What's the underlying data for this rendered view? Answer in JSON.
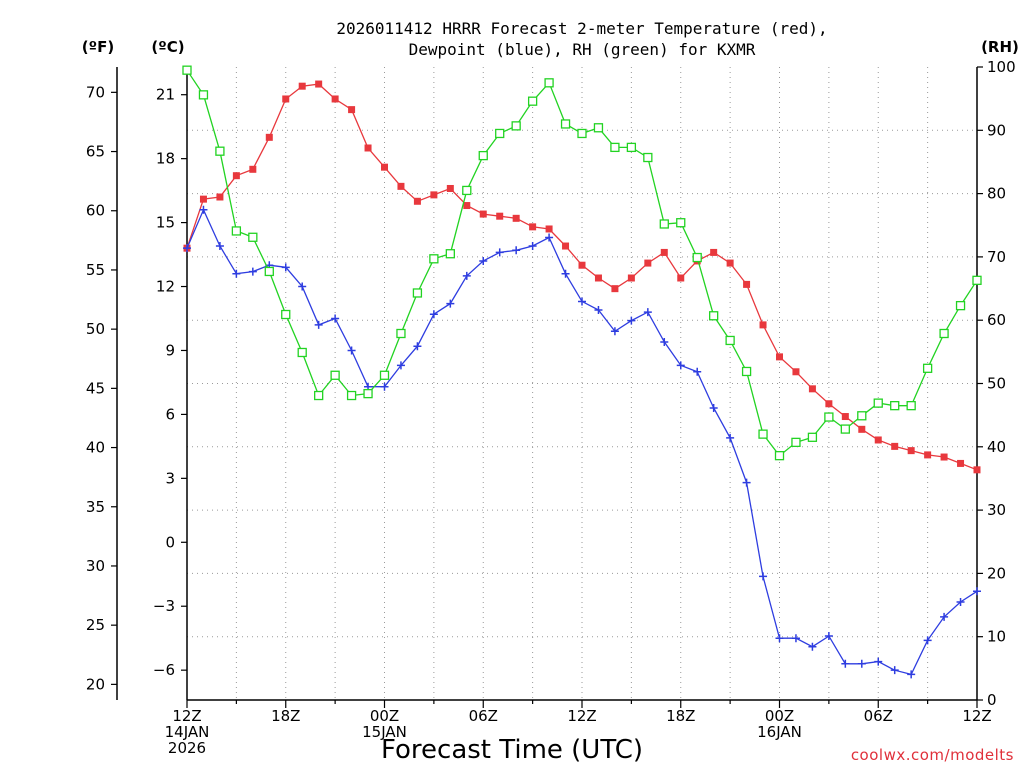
{
  "chart_data": {
    "type": "line",
    "title": [
      "2026011412 HRRR Forecast 2-meter Temperature (red),",
      "Dewpoint (blue), RH (green) for KXMR"
    ],
    "xlabel": "Forecast Time (UTC)",
    "credit": "coolwx.com/modelts",
    "units": {
      "fahrenheit": "(ºF)",
      "celsius": "(ºC)",
      "rh": "(RH)"
    },
    "hours_range": [
      0,
      48
    ],
    "celsius_range": [
      -7.4,
      22.3
    ],
    "rh_range": [
      0,
      100
    ],
    "x_ticks": [
      {
        "hour": 0,
        "lines": [
          "12Z",
          "14JAN",
          "2026"
        ]
      },
      {
        "hour": 6,
        "lines": [
          "18Z"
        ]
      },
      {
        "hour": 12,
        "lines": [
          "00Z",
          "15JAN"
        ]
      },
      {
        "hour": 18,
        "lines": [
          "06Z"
        ]
      },
      {
        "hour": 24,
        "lines": [
          "12Z"
        ]
      },
      {
        "hour": 30,
        "lines": [
          "18Z"
        ]
      },
      {
        "hour": 36,
        "lines": [
          "00Z",
          "16JAN"
        ]
      },
      {
        "hour": 42,
        "lines": [
          "06Z"
        ]
      },
      {
        "hour": 48,
        "lines": [
          "12Z"
        ]
      }
    ],
    "celsius_ticks": [
      "-6",
      "-3",
      "0",
      "3",
      "6",
      "9",
      "12",
      "15",
      "18",
      "21"
    ],
    "fahrenheit_ticks": [
      "20",
      "25",
      "30",
      "35",
      "40",
      "45",
      "50",
      "55",
      "60",
      "65",
      "70"
    ],
    "rh_ticks": [
      "0",
      "10",
      "20",
      "30",
      "40",
      "50",
      "60",
      "70",
      "80",
      "90",
      "100"
    ],
    "series": [
      {
        "name": "2-meter Temperature (°C)",
        "axis": "celsius",
        "color": "#e8383d",
        "marker": "square-filled",
        "values": [
          13.8,
          16.1,
          16.2,
          17.2,
          17.5,
          19.0,
          20.8,
          21.4,
          21.5,
          20.8,
          20.3,
          18.5,
          17.6,
          16.7,
          16.0,
          16.3,
          16.6,
          15.8,
          15.4,
          15.3,
          15.2,
          14.8,
          14.7,
          13.9,
          13.0,
          12.4,
          11.9,
          12.4,
          13.1,
          13.6,
          12.4,
          13.2,
          13.6,
          13.1,
          12.1,
          10.2,
          8.7,
          8.0,
          7.2,
          6.5,
          5.9,
          5.3,
          4.8,
          4.5,
          4.3,
          4.1,
          4.0,
          3.7,
          3.4
        ]
      },
      {
        "name": "Dewpoint (°C)",
        "axis": "celsius",
        "color": "#2e3de0",
        "marker": "plus",
        "values": [
          13.8,
          15.6,
          13.9,
          12.6,
          12.7,
          13.0,
          12.9,
          12.0,
          10.2,
          10.5,
          9.0,
          7.3,
          7.3,
          8.3,
          9.2,
          10.7,
          11.2,
          12.5,
          13.2,
          13.6,
          13.7,
          13.9,
          14.3,
          12.6,
          11.3,
          10.9,
          9.9,
          10.4,
          10.8,
          9.4,
          8.3,
          8.0,
          6.3,
          4.9,
          2.8,
          -1.6,
          -4.5,
          -4.5,
          -4.9,
          -4.4,
          -5.7,
          -5.7,
          -5.6,
          -6.0,
          -6.2,
          -4.6,
          -3.5,
          -2.8,
          -2.3
        ]
      },
      {
        "name": "Relative Humidity (%)",
        "axis": "rh",
        "color": "#22d322",
        "marker": "square-open",
        "values": [
          99.5,
          95.6,
          86.7,
          74.1,
          73.1,
          67.7,
          60.9,
          54.9,
          48.1,
          51.3,
          48.1,
          48.4,
          51.3,
          57.9,
          64.3,
          69.7,
          70.5,
          80.5,
          86.0,
          89.5,
          90.7,
          94.6,
          97.5,
          91.0,
          89.5,
          90.4,
          87.3,
          87.3,
          85.7,
          75.2,
          75.4,
          69.9,
          60.7,
          56.8,
          51.9,
          42.0,
          38.6,
          40.7,
          41.5,
          44.7,
          42.8,
          44.9,
          46.9,
          46.5,
          46.5,
          52.4,
          57.9,
          62.3,
          66.3
        ]
      }
    ]
  }
}
